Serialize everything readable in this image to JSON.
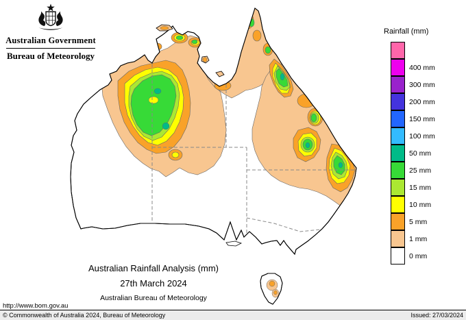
{
  "header": {
    "government_label": "Australian Government",
    "bureau_label": "Bureau of Meteorology"
  },
  "map_caption": {
    "title": "Australian Rainfall Analysis (mm)",
    "date": "27th March 2024",
    "credit": "Australian Bureau of Meteorology"
  },
  "legend": {
    "title": "Rainfall (mm)",
    "entries": [
      {
        "color": "#ff66aa",
        "label": ""
      },
      {
        "color": "#ee00ee",
        "label": "400 mm"
      },
      {
        "color": "#9922cc",
        "label": "300 mm"
      },
      {
        "color": "#4433dd",
        "label": "200 mm"
      },
      {
        "color": "#2266ff",
        "label": "150 mm"
      },
      {
        "color": "#33bbff",
        "label": "100 mm"
      },
      {
        "color": "#00bb88",
        "label": "50 mm"
      },
      {
        "color": "#37da37",
        "label": "25 mm"
      },
      {
        "color": "#abe832",
        "label": "15 mm"
      },
      {
        "color": "#ffff00",
        "label": "10 mm"
      },
      {
        "color": "#f9a229",
        "label": "5 mm"
      },
      {
        "color": "#f8c690",
        "label": "1 mm"
      },
      {
        "color": "#ffffff",
        "label": "0 mm"
      }
    ]
  },
  "colors": {
    "tan": "#f8c690",
    "orange": "#f9a229",
    "yellow": "#ffff00",
    "lime": "#abe832",
    "green": "#37da37",
    "teal": "#00bb88",
    "land": "#ffffff",
    "coast": "#000000",
    "border_dash": "#888888"
  },
  "footer": {
    "url": "http://www.bom.gov.au",
    "copyright": "© Commonwealth of Australia 2024, Bureau of Meteorology",
    "issued": "Issued: 27/03/2024"
  }
}
